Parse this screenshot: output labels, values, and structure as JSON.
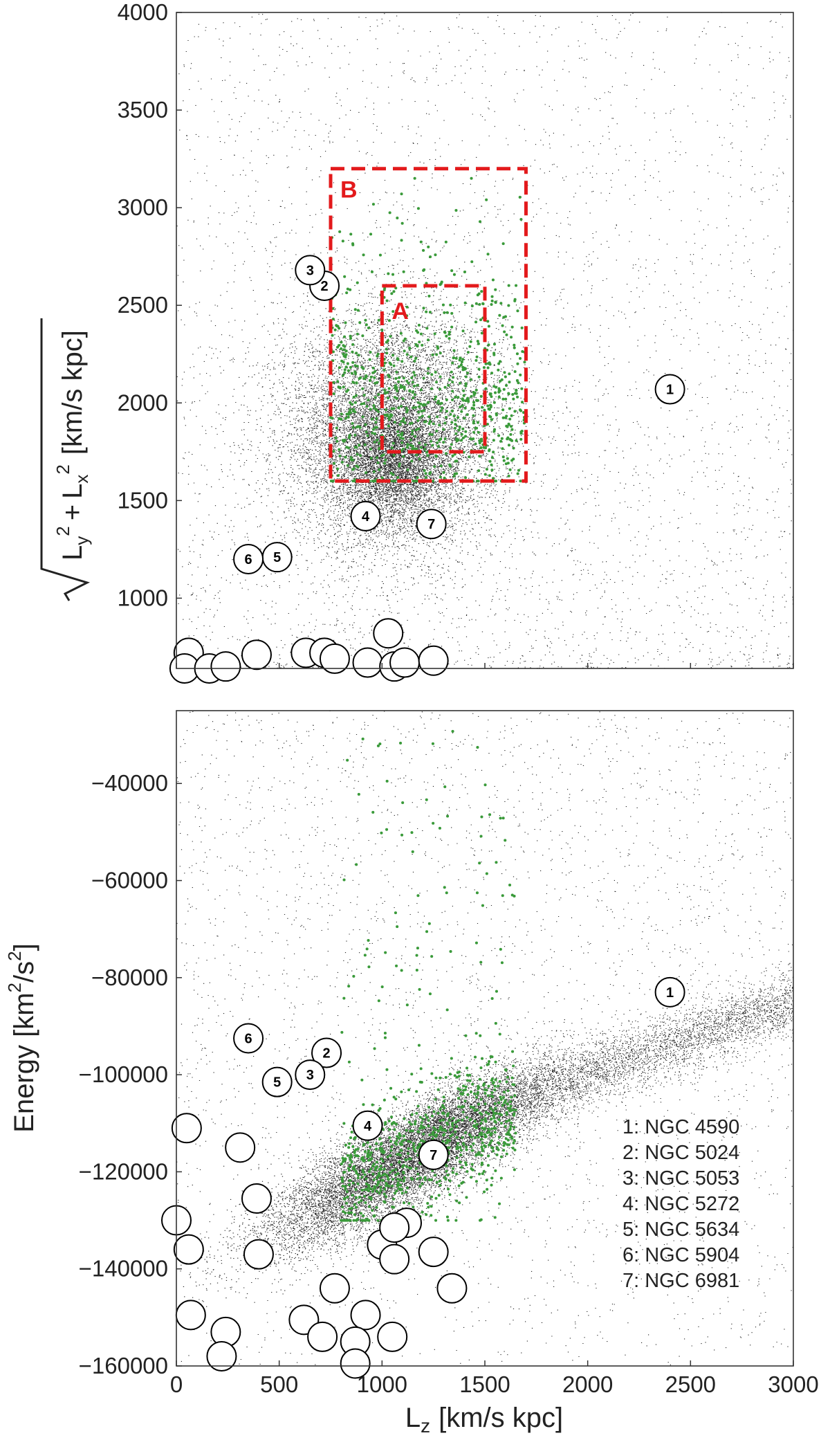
{
  "chart_data": [
    {
      "type": "scatter",
      "panel": "top",
      "xlabel": "",
      "ylabel": "L_y^2 + L_x^2 [km/s kpc]",
      "ylabel_parts": {
        "base_y": "L",
        "sub_y": "y",
        "sup_y": "2",
        "plus": "+",
        "base_x": "L",
        "sub_x": "x",
        "sup_x": "2",
        "unit": "[km/s kpc]"
      },
      "xlim": [
        0,
        3000
      ],
      "ylim": [
        640,
        4000
      ],
      "yticks": [
        1000,
        1500,
        2000,
        2500,
        3000,
        3500,
        4000
      ],
      "xticks": [
        0,
        500,
        1000,
        1500,
        2000,
        2500,
        3000
      ],
      "x_ticklabels_shown": false,
      "grid": false,
      "background_density": {
        "description_points": "black small dots, dense core near Lz~1000-1100, y~1800-2000",
        "core": {
          "x": 1050,
          "y": 1850,
          "sx": 220,
          "sy": 260
        }
      },
      "green_points": {
        "color": "#3a9a3a",
        "x_range": [
          750,
          1700
        ],
        "y_range": [
          1600,
          3150
        ]
      },
      "boxes": [
        {
          "label": "A",
          "x0": 1000,
          "x1": 1500,
          "y0": 1750,
          "y1": 2600,
          "color": "#e31a1c",
          "dashed": true
        },
        {
          "label": "B",
          "x0": 750,
          "x1": 1700,
          "y0": 1600,
          "y1": 3200,
          "color": "#e31a1c",
          "dashed": true
        }
      ],
      "clusters": [
        {
          "id": "1",
          "x": 2400,
          "y": 2070
        },
        {
          "id": "2",
          "x": 720,
          "y": 2600
        },
        {
          "id": "3",
          "x": 650,
          "y": 2680
        },
        {
          "id": "4",
          "x": 920,
          "y": 1420
        },
        {
          "id": "5",
          "x": 490,
          "y": 1210
        },
        {
          "id": "6",
          "x": 350,
          "y": 1200
        },
        {
          "id": "7",
          "x": 1240,
          "y": 1380
        }
      ],
      "unlabeled_clusters": [
        {
          "x": 60,
          "y": 720
        },
        {
          "x": 40,
          "y": 640
        },
        {
          "x": 160,
          "y": 640
        },
        {
          "x": 240,
          "y": 650
        },
        {
          "x": 390,
          "y": 710
        },
        {
          "x": 630,
          "y": 720
        },
        {
          "x": 720,
          "y": 720
        },
        {
          "x": 770,
          "y": 690
        },
        {
          "x": 930,
          "y": 670
        },
        {
          "x": 1030,
          "y": 820
        },
        {
          "x": 1060,
          "y": 650
        },
        {
          "x": 1110,
          "y": 670
        },
        {
          "x": 1250,
          "y": 680
        }
      ]
    },
    {
      "type": "scatter",
      "panel": "bottom",
      "xlabel": "L",
      "xlabel_sub": "z",
      "xlabel_unit": "[km/s kpc]",
      "ylabel": "Energy [km",
      "ylabel_parts": {
        "pre": "Energy [km",
        "sup1": "2",
        "mid": "/s",
        "sup2": "2",
        "post": "]"
      },
      "xlim": [
        0,
        3000
      ],
      "ylim": [
        -160000,
        -25000
      ],
      "xticks": [
        0,
        500,
        1000,
        1500,
        2000,
        2500,
        3000
      ],
      "yticks": [
        -160000,
        -140000,
        -120000,
        -100000,
        -80000,
        -60000,
        -40000
      ],
      "grid": false,
      "green_points": {
        "color": "#3a9a3a",
        "x_range": [
          750,
          1700
        ],
        "y_range": [
          -130000,
          -26000
        ]
      },
      "clusters": [
        {
          "id": "1",
          "x": 2400,
          "y": -83000
        },
        {
          "id": "2",
          "x": 730,
          "y": -95500
        },
        {
          "id": "3",
          "x": 650,
          "y": -100000
        },
        {
          "id": "4",
          "x": 930,
          "y": -110500
        },
        {
          "id": "5",
          "x": 490,
          "y": -101500
        },
        {
          "id": "6",
          "x": 350,
          "y": -92500
        },
        {
          "id": "7",
          "x": 1250,
          "y": -116500
        }
      ],
      "unlabeled_clusters": [
        {
          "x": 50,
          "y": -111000
        },
        {
          "x": 310,
          "y": -115000
        },
        {
          "x": 390,
          "y": -125500
        },
        {
          "x": 0,
          "y": -130000
        },
        {
          "x": 60,
          "y": -136000
        },
        {
          "x": 400,
          "y": -137000
        },
        {
          "x": 1000,
          "y": -135000
        },
        {
          "x": 1060,
          "y": -138000
        },
        {
          "x": 1120,
          "y": -130500
        },
        {
          "x": 1060,
          "y": -131500
        },
        {
          "x": 1250,
          "y": -136500
        },
        {
          "x": 1340,
          "y": -144000
        },
        {
          "x": 770,
          "y": -144000
        },
        {
          "x": 70,
          "y": -149500
        },
        {
          "x": 920,
          "y": -149500
        },
        {
          "x": 620,
          "y": -150500
        },
        {
          "x": 240,
          "y": -153000
        },
        {
          "x": 710,
          "y": -154000
        },
        {
          "x": 870,
          "y": -155000
        },
        {
          "x": 1050,
          "y": -154000
        },
        {
          "x": 220,
          "y": -158000
        },
        {
          "x": 870,
          "y": -159500
        }
      ],
      "legend": {
        "placement": "lower-right",
        "entries": [
          "1: NGC 4590",
          "2: NGC 5024",
          "3: NGC 5053",
          "4: NGC 5272",
          "5: NGC 5634",
          "6: NGC 5904",
          "7: NGC 6981"
        ]
      }
    }
  ]
}
